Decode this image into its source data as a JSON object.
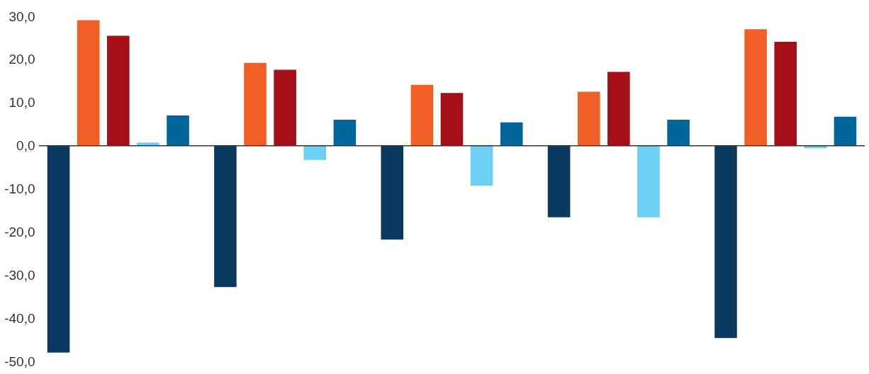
{
  "chart_data": {
    "type": "bar",
    "categories": [
      null,
      null,
      null,
      null,
      null
    ],
    "series": [
      {
        "color": "#0a3a5f",
        "values": [
          -48.0,
          -32.8,
          -21.8,
          -16.6,
          -44.6
        ]
      },
      {
        "color": "#f05f25",
        "values": [
          29.1,
          19.2,
          14.1,
          12.5,
          27.0
        ]
      },
      {
        "color": "#a50f17",
        "values": [
          25.5,
          17.6,
          12.2,
          17.1,
          24.1
        ]
      },
      {
        "color": "#6dcff6",
        "values": [
          0.7,
          -3.3,
          -9.3,
          -16.6,
          -0.6
        ]
      },
      {
        "color": "#006699",
        "values": [
          7.0,
          6.0,
          5.4,
          6.0,
          6.7
        ]
      }
    ],
    "ylim": [
      -50,
      30
    ],
    "yticks": [
      {
        "value": -50,
        "label": "-50,0"
      },
      {
        "value": -40,
        "label": "-40,0"
      },
      {
        "value": -30,
        "label": "-30,0"
      },
      {
        "value": -20,
        "label": "-20,0"
      },
      {
        "value": -10,
        "label": "-10,0"
      },
      {
        "value": 0,
        "label": "0,0"
      },
      {
        "value": 10,
        "label": "10,0"
      },
      {
        "value": 20,
        "label": "20,0"
      },
      {
        "value": 30,
        "label": "30,0"
      }
    ],
    "ref_lines": [
      {
        "axis": "y",
        "value": 0,
        "color": "#333333"
      }
    ],
    "tick_labels": "y",
    "grid": false,
    "legend": false
  }
}
